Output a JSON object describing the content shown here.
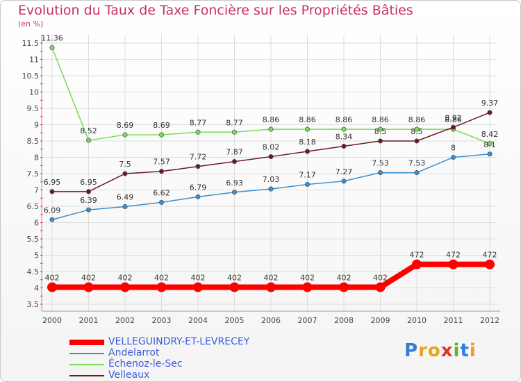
{
  "title": "Evolution du Taux de Taxe Foncière sur les Propriétés Bâties",
  "unit": "(en %)",
  "logo": "Proxiti",
  "colors": {
    "title": "#c8306a",
    "grid": "#dddddd",
    "legend_text": "#3d5bd8"
  },
  "chart_data": {
    "type": "line",
    "title": "Evolution du Taux de Taxe Foncière sur les Propriétés Bâties",
    "ylabel": "(en %)",
    "xlabel": "",
    "x": [
      "2000",
      "2001",
      "2002",
      "2003",
      "2004",
      "2005",
      "2006",
      "2007",
      "2008",
      "2009",
      "2010",
      "2011",
      "2012"
    ],
    "yticks": [
      "3.5",
      "4",
      "4.5",
      "5",
      "5.5",
      "6",
      "6.5",
      "7",
      "7.5",
      "8",
      "8.5",
      "9",
      "9.5",
      "10",
      "10.5",
      "11",
      "11.5"
    ],
    "ylim": [
      3.5,
      11.5
    ],
    "grid": true,
    "legend_position": "bottom-left",
    "series": [
      {
        "name": "VELLEGUINDRY-ET-LEVRECEY",
        "color": "#ff0000",
        "values": [
          4.02,
          4.02,
          4.02,
          4.02,
          4.02,
          4.02,
          4.02,
          4.02,
          4.02,
          4.02,
          4.72,
          4.72,
          4.72
        ],
        "labels": [
          "402",
          "402",
          "402",
          "402",
          "402",
          "402",
          "402",
          "402",
          "402",
          "402",
          "472",
          "472",
          "472"
        ]
      },
      {
        "name": "Andelarrot",
        "color": "#3a8fd0",
        "values": [
          6.09,
          6.39,
          6.49,
          6.62,
          6.79,
          6.93,
          7.03,
          7.17,
          7.27,
          7.53,
          7.53,
          8.0,
          8.1
        ],
        "labels": [
          "6.09",
          "6.39",
          "6.49",
          "6.62",
          "6.79",
          "6.93",
          "7.03",
          "7.17",
          "7.27",
          "7.53",
          "7.53",
          "8",
          "8.1"
        ]
      },
      {
        "name": "Échenoz-le-Sec",
        "color": "#77dd55",
        "values": [
          11.36,
          8.52,
          8.69,
          8.69,
          8.77,
          8.77,
          8.86,
          8.86,
          8.86,
          8.86,
          8.86,
          8.86,
          8.42
        ],
        "labels": [
          "11.36",
          "8.52",
          "8.69",
          "8.69",
          "8.77",
          "8.77",
          "8.86",
          "8.86",
          "8.86",
          "8.86",
          "8.86",
          "8.86",
          "8.42"
        ]
      },
      {
        "name": "Velleaux",
        "color": "#6b1a22",
        "values": [
          6.95,
          6.95,
          7.5,
          7.57,
          7.72,
          7.87,
          8.02,
          8.18,
          8.34,
          8.5,
          8.5,
          8.92,
          9.37
        ],
        "labels": [
          "6.95",
          "6.95",
          "7.5",
          "7.57",
          "7.72",
          "7.87",
          "8.02",
          "8.18",
          "8.34",
          "8.5",
          "8.5",
          "8.92",
          "9.37"
        ]
      }
    ]
  }
}
